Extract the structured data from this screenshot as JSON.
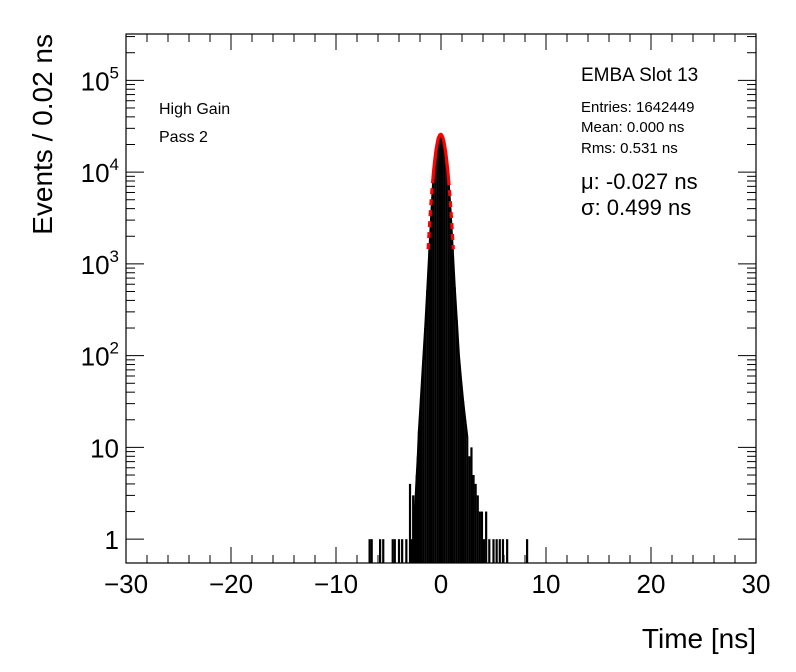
{
  "chart_data": {
    "type": "line",
    "title": "",
    "xlabel": "Time [ns]",
    "ylabel": "Events / 0.02 ns",
    "xlim": [
      -30,
      30
    ],
    "ylim": [
      0.55,
      320000
    ],
    "y_scale": "log",
    "grid": false,
    "x_ticks": [
      -30,
      -20,
      -10,
      0,
      10,
      20,
      30
    ],
    "x_tick_labels": [
      "−30",
      "−20",
      "−10",
      "0",
      "10",
      "20",
      "30"
    ],
    "y_tick_labels": [
      {
        "value": 1,
        "base": "1",
        "exp": ""
      },
      {
        "value": 10,
        "base": "10",
        "exp": ""
      },
      {
        "value": 100,
        "base": "10",
        "exp": "2"
      },
      {
        "value": 1000,
        "base": "10",
        "exp": "3"
      },
      {
        "value": 10000,
        "base": "10",
        "exp": "4"
      },
      {
        "value": 100000,
        "base": "10",
        "exp": "5"
      }
    ],
    "annotations": {
      "gain": "High Gain",
      "pass": "Pass 2",
      "module": "EMBA Slot 13",
      "entries": "Entries: 1642449",
      "mean": "Mean: 0.000 ns",
      "rms": "Rms: 0.531 ns",
      "mu": "μ: -0.027 ns",
      "sigma": "σ: 0.499 ns"
    },
    "series": [
      {
        "kind": "histogram",
        "color": "#000000",
        "x": [
          -6.8,
          -6.6,
          -5.8,
          -5.5,
          -4.6,
          -4.4,
          -4.0,
          -3.7,
          -3.3,
          -2.95,
          -2.8,
          -2.65,
          -2.5,
          -2.4,
          -2.3,
          -2.2,
          -2.1,
          -1.9,
          -1.7,
          -1.5,
          -1.3,
          -1.1,
          -0.9,
          -0.7,
          -0.5,
          -0.3,
          -0.1,
          0.0,
          0.1,
          0.3,
          0.5,
          0.7,
          0.9,
          1.1,
          1.3,
          1.5,
          1.7,
          1.9,
          2.1,
          2.3,
          2.5,
          2.7,
          2.9,
          3.1,
          3.3,
          3.5,
          3.7,
          3.9,
          4.1,
          4.3,
          4.6,
          5.0,
          5.3,
          5.6,
          5.9,
          6.3,
          8.2
        ],
        "y": [
          1,
          1,
          1,
          1,
          1,
          1,
          1,
          1,
          1,
          4,
          1,
          3,
          2,
          3,
          5,
          8,
          15,
          35,
          85,
          200,
          520,
          1400,
          3800,
          9500,
          17500,
          23500,
          25500,
          25600,
          25000,
          22000,
          15500,
          8500,
          3800,
          1500,
          560,
          240,
          100,
          55,
          32,
          20,
          13,
          8,
          10,
          5,
          4,
          3,
          2,
          2,
          1,
          2,
          1,
          1,
          1,
          1,
          1,
          1,
          1
        ]
      },
      {
        "kind": "gaussian-fit",
        "color": "#ff0000",
        "mu": -0.027,
        "sigma": 0.499,
        "amplitude": 25800
      }
    ]
  }
}
